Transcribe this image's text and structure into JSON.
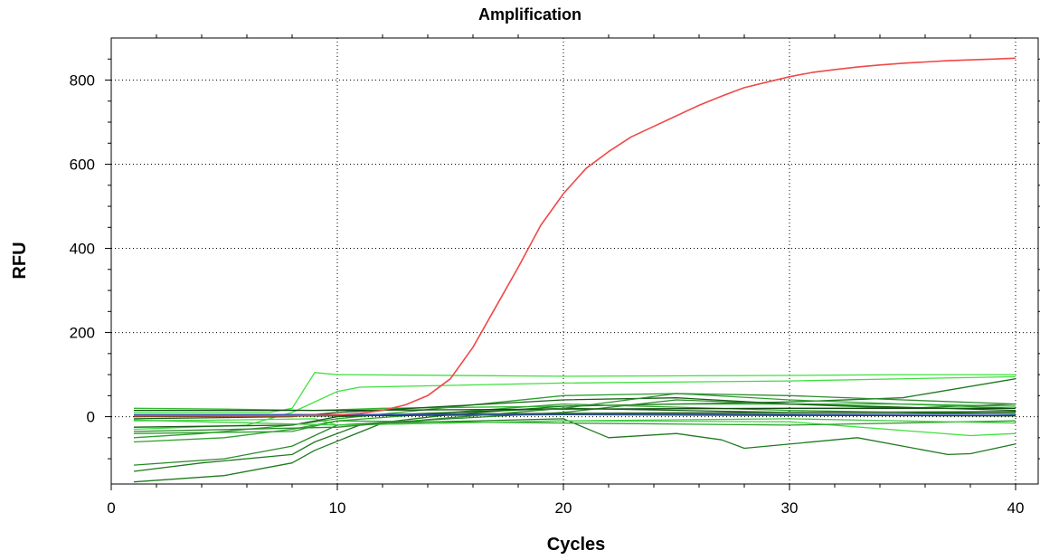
{
  "chart_data": {
    "type": "line",
    "title": "Amplification",
    "xlabel": "Cycles",
    "ylabel": "RFU",
    "xlim": [
      0,
      41
    ],
    "ylim": [
      -160,
      900
    ],
    "x_ticks": [
      0,
      10,
      20,
      30,
      40
    ],
    "y_ticks": [
      0,
      200,
      400,
      600,
      800
    ],
    "grid": true,
    "legend": "none",
    "colors": {
      "positive": "#f04848",
      "negative_light": "#3ee03e",
      "negative_dark": "#1f7a1f",
      "negative_darkest": "#0e4a0e",
      "baseline_blue": "#3a55c8"
    },
    "series": [
      {
        "color": "#f04848",
        "x": [
          1,
          2,
          3,
          4,
          5,
          6,
          7,
          8,
          9,
          10,
          11,
          12,
          13,
          14,
          15,
          16,
          17,
          18,
          19,
          20,
          21,
          22,
          23,
          24,
          25,
          26,
          27,
          28,
          29,
          30,
          31,
          32,
          33,
          34,
          35,
          36,
          37,
          38,
          39,
          40
        ],
        "y": [
          2,
          2,
          2,
          2,
          2,
          2,
          2,
          2,
          3,
          4,
          8,
          15,
          28,
          50,
          90,
          165,
          260,
          355,
          455,
          530,
          590,
          630,
          665,
          690,
          715,
          740,
          762,
          782,
          795,
          808,
          818,
          825,
          831,
          836,
          840,
          843,
          846,
          848,
          850,
          852
        ]
      },
      {
        "color": "#3ee03e",
        "x": [
          1,
          7,
          8,
          9,
          10,
          20,
          30,
          35,
          40
        ],
        "y": [
          10,
          10,
          20,
          105,
          100,
          96,
          98,
          100,
          100
        ]
      },
      {
        "color": "#3ee03e",
        "x": [
          1,
          6,
          8,
          10,
          11,
          20,
          30,
          40
        ],
        "y": [
          -30,
          -20,
          10,
          60,
          70,
          80,
          85,
          95
        ]
      },
      {
        "color": "#3ee03e",
        "x": [
          1,
          5,
          9,
          10,
          15,
          20,
          30,
          38,
          40
        ],
        "y": [
          -10,
          -8,
          -5,
          -20,
          -15,
          -10,
          -12,
          -45,
          -40
        ]
      },
      {
        "color": "#2fb82f",
        "x": [
          1,
          5,
          9,
          12,
          20,
          25,
          35,
          40
        ],
        "y": [
          20,
          18,
          15,
          20,
          25,
          30,
          30,
          25
        ]
      },
      {
        "color": "#1f7a1f",
        "x": [
          1,
          4,
          8,
          9,
          11,
          15,
          20,
          25,
          30,
          35,
          40
        ],
        "y": [
          -130,
          -110,
          -90,
          -60,
          -20,
          5,
          25,
          30,
          35,
          45,
          90
        ]
      },
      {
        "color": "#1f7a1f",
        "x": [
          1,
          5,
          8,
          9,
          12,
          20,
          22,
          25,
          27,
          28,
          33,
          37,
          38,
          40
        ],
        "y": [
          -155,
          -140,
          -110,
          -80,
          -15,
          -5,
          -50,
          -40,
          -55,
          -75,
          -50,
          -90,
          -88,
          -65
        ]
      },
      {
        "color": "#2a8a2a",
        "x": [
          1,
          5,
          8,
          10,
          20,
          25,
          30,
          35,
          40
        ],
        "y": [
          -115,
          -100,
          -70,
          -20,
          10,
          40,
          30,
          20,
          30
        ]
      },
      {
        "color": "#2fa02f",
        "x": [
          1,
          4,
          8,
          10,
          20,
          25,
          30,
          35,
          40
        ],
        "y": [
          -50,
          -40,
          -20,
          -5,
          50,
          55,
          40,
          30,
          20
        ]
      },
      {
        "color": "#2fa02f",
        "x": [
          1,
          5,
          8,
          10,
          20,
          30,
          40
        ],
        "y": [
          -60,
          -50,
          -30,
          -10,
          30,
          15,
          5
        ]
      },
      {
        "color": "#0e4a0e",
        "x": [
          1,
          10,
          20,
          30,
          40
        ],
        "y": [
          15,
          15,
          18,
          20,
          20
        ]
      },
      {
        "color": "#0e4a0e",
        "x": [
          1,
          10,
          20,
          30,
          40
        ],
        "y": [
          5,
          5,
          8,
          10,
          12
        ]
      },
      {
        "color": "#0e4a0e",
        "x": [
          1,
          10,
          20,
          30,
          40
        ],
        "y": [
          0,
          2,
          5,
          3,
          2
        ]
      },
      {
        "color": "#165e16",
        "x": [
          1,
          8,
          10,
          20,
          25,
          30,
          40
        ],
        "y": [
          -5,
          0,
          10,
          40,
          45,
          30,
          15
        ]
      },
      {
        "color": "#165e16",
        "x": [
          1,
          8,
          10,
          20,
          30,
          40
        ],
        "y": [
          -25,
          -20,
          0,
          20,
          10,
          10
        ]
      },
      {
        "color": "#27a127",
        "x": [
          1,
          8,
          10,
          20,
          30,
          40
        ],
        "y": [
          -40,
          -35,
          -10,
          -15,
          -20,
          -10
        ]
      },
      {
        "color": "#44c844",
        "x": [
          1,
          10,
          20,
          30,
          40
        ],
        "y": [
          -8,
          -20,
          -10,
          -5,
          -15
        ]
      },
      {
        "color": "#2e8b2e",
        "x": [
          1,
          10,
          20,
          25,
          30,
          35,
          40
        ],
        "y": [
          -35,
          -25,
          20,
          55,
          50,
          40,
          30
        ]
      },
      {
        "color": "#3a55c8",
        "x": [
          1,
          10,
          20,
          30,
          40
        ],
        "y": [
          4,
          5,
          6,
          6,
          6
        ]
      }
    ]
  }
}
